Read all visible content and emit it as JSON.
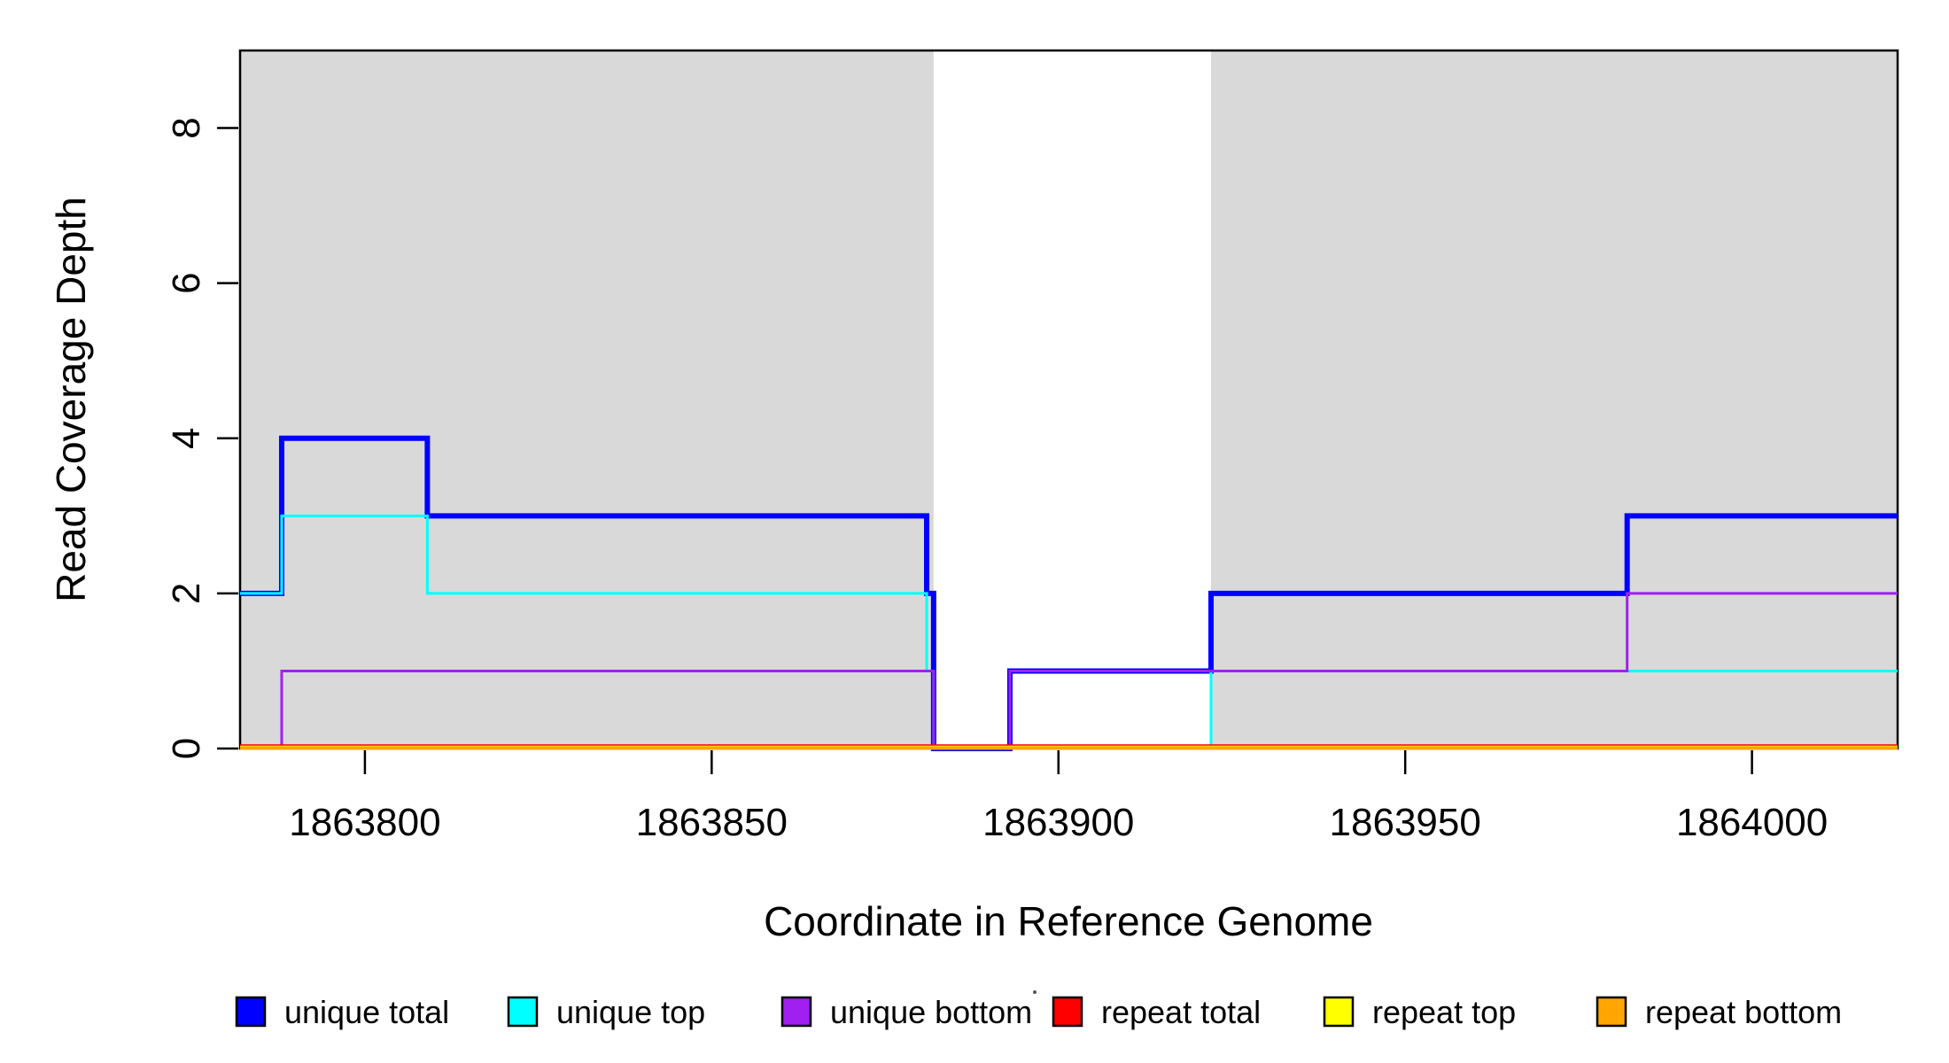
{
  "figure": {
    "x_title": "Coordinate in Reference Genome",
    "y_title": "Read Coverage Depth",
    "background": "#ffffff"
  },
  "chart_data": {
    "type": "line",
    "step": true,
    "title": "",
    "xlabel": "Coordinate in Reference Genome",
    "ylabel": "Read Coverage Depth",
    "xlim": [
      1863782,
      1864021
    ],
    "ylim": [
      0,
      9
    ],
    "x_ticks": [
      1863800,
      1863850,
      1863900,
      1863950,
      1864000
    ],
    "y_ticks": [
      0,
      2,
      4,
      6,
      8
    ],
    "grid": false,
    "legend_position": "bottom",
    "shaded_color": "#d9d9d9",
    "shaded_regions": [
      {
        "start": 1863782,
        "end": 1863882
      },
      {
        "start": 1863922,
        "end": 1864021
      }
    ],
    "series": [
      {
        "name": "unique total",
        "color": "#0000ff",
        "width": 6,
        "points": [
          [
            1863782,
            2
          ],
          [
            1863788,
            4
          ],
          [
            1863809,
            3
          ],
          [
            1863881,
            2
          ],
          [
            1863882,
            0
          ],
          [
            1863893,
            1
          ],
          [
            1863922,
            2
          ],
          [
            1863982,
            3
          ],
          [
            1864021,
            3
          ]
        ]
      },
      {
        "name": "unique top",
        "color": "#00ffff",
        "width": 3,
        "points": [
          [
            1863782,
            2
          ],
          [
            1863788,
            3
          ],
          [
            1863809,
            2
          ],
          [
            1863881,
            1
          ],
          [
            1863882,
            0
          ],
          [
            1863922,
            1
          ],
          [
            1864021,
            1
          ]
        ]
      },
      {
        "name": "unique bottom",
        "color": "#a020f0",
        "width": 3,
        "points": [
          [
            1863782,
            0
          ],
          [
            1863788,
            1
          ],
          [
            1863882,
            0
          ],
          [
            1863893,
            1
          ],
          [
            1863982,
            2
          ],
          [
            1864021,
            2
          ]
        ]
      },
      {
        "name": "repeat total",
        "color": "#ff0000",
        "width": 2.5,
        "baseline_offset": -3.5,
        "points": [
          [
            1863782,
            0
          ],
          [
            1864021,
            0
          ]
        ]
      },
      {
        "name": "repeat top",
        "color": "#ffff00",
        "width": 2.5,
        "baseline_offset": -2,
        "points": [
          [
            1863782,
            0
          ],
          [
            1864021,
            0
          ]
        ]
      },
      {
        "name": "repeat bottom",
        "color": "#ffa500",
        "width": 4,
        "baseline_offset": -0.5,
        "points": [
          [
            1863782,
            0
          ],
          [
            1864021,
            0
          ]
        ]
      }
    ],
    "legend": [
      {
        "label": "unique total",
        "color": "#0000ff"
      },
      {
        "label": "unique top",
        "color": "#00ffff"
      },
      {
        "label": "unique bottom",
        "color": "#a020f0"
      },
      {
        "label": "repeat total",
        "color": "#ff0000"
      },
      {
        "label": "repeat top",
        "color": "#ffff00"
      },
      {
        "label": "repeat bottom",
        "color": "#ffa500"
      }
    ]
  }
}
